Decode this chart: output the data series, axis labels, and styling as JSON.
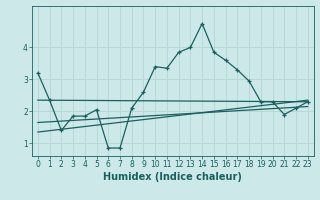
{
  "xlabel": "Humidex (Indice chaleur)",
  "bg_color": "#cce8e8",
  "grid_color": "#b8d8d8",
  "line_color": "#1a6060",
  "xlim": [
    -0.5,
    23.5
  ],
  "ylim": [
    0.6,
    5.3
  ],
  "xticks": [
    0,
    1,
    2,
    3,
    4,
    5,
    6,
    7,
    8,
    9,
    10,
    11,
    12,
    13,
    14,
    15,
    16,
    17,
    18,
    19,
    20,
    21,
    22,
    23
  ],
  "yticks": [
    1,
    2,
    3,
    4
  ],
  "main_line_x": [
    0,
    1,
    2,
    3,
    4,
    5,
    6,
    7,
    8,
    9,
    10,
    11,
    12,
    13,
    14,
    15,
    16,
    17,
    18,
    19,
    20,
    21,
    22,
    23
  ],
  "main_line_y": [
    3.2,
    2.35,
    1.4,
    1.85,
    1.85,
    2.05,
    0.85,
    0.85,
    2.1,
    2.6,
    3.4,
    3.35,
    3.85,
    4.0,
    4.75,
    3.85,
    3.6,
    3.3,
    2.95,
    2.3,
    2.3,
    1.9,
    2.1,
    2.3
  ],
  "reg_line1_x": [
    0,
    23
  ],
  "reg_line1_y": [
    2.35,
    2.3
  ],
  "reg_line2_x": [
    0,
    23
  ],
  "reg_line2_y": [
    1.65,
    2.15
  ],
  "reg_line3_x": [
    0,
    23
  ],
  "reg_line3_y": [
    1.35,
    2.35
  ],
  "label_fontsize": 7,
  "tick_fontsize": 5.5
}
